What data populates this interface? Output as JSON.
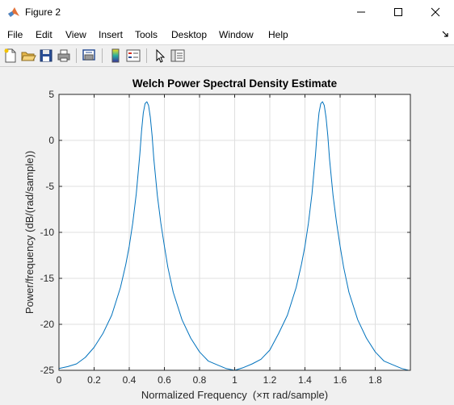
{
  "window": {
    "title": "Figure 2"
  },
  "menu": {
    "items": [
      "File",
      "Edit",
      "View",
      "Insert",
      "Tools",
      "Desktop",
      "Window",
      "Help"
    ]
  },
  "toolbar": {
    "buttons": [
      "new-figure-icon",
      "open-file-icon",
      "save-icon",
      "print-icon",
      "print-preview-icon",
      "insert-colorbar-icon",
      "insert-legend-icon",
      "edit-plot-pointer-icon",
      "property-inspector-icon"
    ]
  },
  "colors": {
    "line": "#0072bd",
    "grid": "#dfdfdf",
    "axes_bg": "#ffffff",
    "figure_bg": "#f0f0f0"
  },
  "chart_data": {
    "type": "line",
    "title": "Welch Power Spectral Density Estimate",
    "xlabel": "Normalized Frequency  (×π rad/sample)",
    "ylabel": "Power/frequency (dB/(rad/sample))",
    "xlim": [
      0,
      2
    ],
    "ylim": [
      -25,
      5
    ],
    "xticks": [
      "0",
      "0.2",
      "0.4",
      "0.6",
      "0.8",
      "1",
      "1.2",
      "1.4",
      "1.6",
      "1.8"
    ],
    "yticks": [
      "5",
      "0",
      "-5",
      "-10",
      "-15",
      "-20",
      "-25"
    ],
    "grid": true,
    "series": [
      {
        "x": [
          0,
          0.05,
          0.1,
          0.15,
          0.2,
          0.25,
          0.3,
          0.35,
          0.38,
          0.4,
          0.42,
          0.44,
          0.46,
          0.47,
          0.48,
          0.49,
          0.5,
          0.51,
          0.52,
          0.53,
          0.54,
          0.56,
          0.58,
          0.6,
          0.62,
          0.65,
          0.7,
          0.75,
          0.8,
          0.85,
          0.9,
          0.95,
          1.0,
          1.05,
          1.1,
          1.15,
          1.2,
          1.25,
          1.3,
          1.35,
          1.38,
          1.4,
          1.42,
          1.44,
          1.46,
          1.47,
          1.48,
          1.49,
          1.5,
          1.51,
          1.52,
          1.53,
          1.54,
          1.56,
          1.58,
          1.6,
          1.62,
          1.65,
          1.7,
          1.75,
          1.8,
          1.85,
          1.9,
          1.95,
          1.99
        ],
        "y": [
          -24.8,
          -24.6,
          -24.3,
          -23.6,
          -22.5,
          -21.0,
          -19.0,
          -16.0,
          -13.5,
          -11.5,
          -9.0,
          -5.8,
          -1.5,
          1.0,
          3.0,
          4.0,
          4.2,
          3.8,
          2.5,
          0.5,
          -2.0,
          -6.0,
          -9.0,
          -11.5,
          -13.8,
          -16.5,
          -19.5,
          -21.5,
          -23.0,
          -24.0,
          -24.4,
          -24.8,
          -25.0,
          -24.7,
          -24.3,
          -23.8,
          -22.8,
          -21.0,
          -19.0,
          -16.0,
          -13.5,
          -11.5,
          -9.0,
          -5.8,
          -1.5,
          1.0,
          3.0,
          4.0,
          4.2,
          3.8,
          2.5,
          0.5,
          -2.0,
          -6.0,
          -9.0,
          -11.5,
          -13.8,
          -16.5,
          -19.5,
          -21.5,
          -23.0,
          -24.0,
          -24.4,
          -24.8,
          -25.0
        ]
      }
    ]
  }
}
